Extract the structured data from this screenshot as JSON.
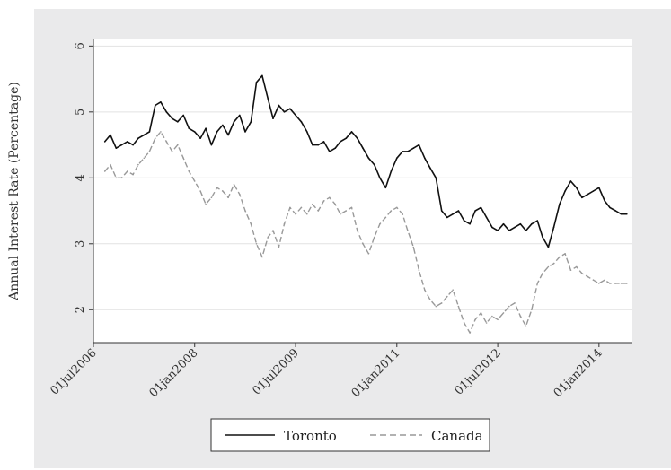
{
  "chart_data": {
    "type": "line",
    "title": "",
    "xlabel": "",
    "ylabel": "Annual Interest Rate (Percentage)",
    "xlim": [
      "2006-07-01",
      "2014-07-01"
    ],
    "ylim": [
      1.5,
      6.1
    ],
    "grid": true,
    "legend_position": "bottom",
    "x_ticks": [
      "01jul2006",
      "01jan2008",
      "01jul2009",
      "01jan2011",
      "01jul2012",
      "01jan2014"
    ],
    "y_ticks": [
      2,
      3,
      4,
      5,
      6
    ],
    "series": [
      {
        "name": "Toronto",
        "color": "#111111",
        "dash": "solid",
        "x": [
          "2006-09-01",
          "2006-10-01",
          "2006-11-01",
          "2006-12-01",
          "2007-01-01",
          "2007-02-01",
          "2007-03-01",
          "2007-04-01",
          "2007-05-01",
          "2007-06-01",
          "2007-07-01",
          "2007-08-01",
          "2007-09-01",
          "2007-10-01",
          "2007-11-01",
          "2007-12-01",
          "2008-01-01",
          "2008-02-01",
          "2008-03-01",
          "2008-04-01",
          "2008-05-01",
          "2008-06-01",
          "2008-07-01",
          "2008-08-01",
          "2008-09-01",
          "2008-10-01",
          "2008-11-01",
          "2008-12-01",
          "2009-01-01",
          "2009-02-01",
          "2009-03-01",
          "2009-04-01",
          "2009-05-01",
          "2009-06-01",
          "2009-07-01",
          "2009-08-01",
          "2009-09-01",
          "2009-10-01",
          "2009-11-01",
          "2009-12-01",
          "2010-01-01",
          "2010-02-01",
          "2010-03-01",
          "2010-04-01",
          "2010-05-01",
          "2010-06-01",
          "2010-07-01",
          "2010-08-01",
          "2010-09-01",
          "2010-10-01",
          "2010-11-01",
          "2010-12-01",
          "2011-01-01",
          "2011-02-01",
          "2011-03-01",
          "2011-04-01",
          "2011-05-01",
          "2011-06-01",
          "2011-07-01",
          "2011-08-01",
          "2011-09-01",
          "2011-10-01",
          "2011-11-01",
          "2011-12-01",
          "2012-01-01",
          "2012-02-01",
          "2012-03-01",
          "2012-04-01",
          "2012-05-01",
          "2012-06-01",
          "2012-07-01",
          "2012-08-01",
          "2012-09-01",
          "2012-10-01",
          "2012-11-01",
          "2012-12-01",
          "2013-01-01",
          "2013-02-01",
          "2013-03-01",
          "2013-04-01",
          "2013-05-01",
          "2013-06-01",
          "2013-07-01",
          "2013-08-01",
          "2013-09-01",
          "2013-10-01",
          "2013-11-01",
          "2013-12-01",
          "2014-01-01",
          "2014-02-01",
          "2014-03-01",
          "2014-04-01",
          "2014-05-01",
          "2014-06-01"
        ],
        "y": [
          4.55,
          4.65,
          4.45,
          4.5,
          4.55,
          4.5,
          4.6,
          4.65,
          4.7,
          5.1,
          5.15,
          5.0,
          4.9,
          4.85,
          4.95,
          4.75,
          4.7,
          4.6,
          4.75,
          4.5,
          4.7,
          4.8,
          4.65,
          4.85,
          4.95,
          4.7,
          4.85,
          5.45,
          5.55,
          5.2,
          4.9,
          5.1,
          5.0,
          5.05,
          4.95,
          4.85,
          4.7,
          4.5,
          4.5,
          4.55,
          4.4,
          4.45,
          4.55,
          4.6,
          4.7,
          4.6,
          4.45,
          4.3,
          4.2,
          4.0,
          3.85,
          4.1,
          4.3,
          4.4,
          4.4,
          4.45,
          4.5,
          4.3,
          4.15,
          4.0,
          3.5,
          3.4,
          3.45,
          3.5,
          3.35,
          3.3,
          3.5,
          3.55,
          3.4,
          3.25,
          3.2,
          3.3,
          3.2,
          3.25,
          3.3,
          3.2,
          3.3,
          3.35,
          3.1,
          2.95,
          3.25,
          3.6,
          3.8,
          3.95,
          3.85,
          3.7,
          3.75,
          3.8,
          3.85,
          3.65,
          3.55,
          3.5,
          3.45,
          3.45
        ]
      },
      {
        "name": "Canada",
        "color": "#999999",
        "dash": "dashed",
        "x": [
          "2006-09-01",
          "2006-10-01",
          "2006-11-01",
          "2006-12-01",
          "2007-01-01",
          "2007-02-01",
          "2007-03-01",
          "2007-04-01",
          "2007-05-01",
          "2007-06-01",
          "2007-07-01",
          "2007-08-01",
          "2007-09-01",
          "2007-10-01",
          "2007-11-01",
          "2007-12-01",
          "2008-01-01",
          "2008-02-01",
          "2008-03-01",
          "2008-04-01",
          "2008-05-01",
          "2008-06-01",
          "2008-07-01",
          "2008-08-01",
          "2008-09-01",
          "2008-10-01",
          "2008-11-01",
          "2008-12-01",
          "2009-01-01",
          "2009-02-01",
          "2009-03-01",
          "2009-04-01",
          "2009-05-01",
          "2009-06-01",
          "2009-07-01",
          "2009-08-01",
          "2009-09-01",
          "2009-10-01",
          "2009-11-01",
          "2009-12-01",
          "2010-01-01",
          "2010-02-01",
          "2010-03-01",
          "2010-04-01",
          "2010-05-01",
          "2010-06-01",
          "2010-07-01",
          "2010-08-01",
          "2010-09-01",
          "2010-10-01",
          "2010-11-01",
          "2010-12-01",
          "2011-01-01",
          "2011-02-01",
          "2011-03-01",
          "2011-04-01",
          "2011-05-01",
          "2011-06-01",
          "2011-07-01",
          "2011-08-01",
          "2011-09-01",
          "2011-10-01",
          "2011-11-01",
          "2011-12-01",
          "2012-01-01",
          "2012-02-01",
          "2012-03-01",
          "2012-04-01",
          "2012-05-01",
          "2012-06-01",
          "2012-07-01",
          "2012-08-01",
          "2012-09-01",
          "2012-10-01",
          "2012-11-01",
          "2012-12-01",
          "2013-01-01",
          "2013-02-01",
          "2013-03-01",
          "2013-04-01",
          "2013-05-01",
          "2013-06-01",
          "2013-07-01",
          "2013-08-01",
          "2013-09-01",
          "2013-10-01",
          "2013-11-01",
          "2013-12-01",
          "2014-01-01",
          "2014-02-01",
          "2014-03-01",
          "2014-04-01",
          "2014-05-01",
          "2014-06-01"
        ],
        "y": [
          4.1,
          4.2,
          4.0,
          4.0,
          4.1,
          4.05,
          4.2,
          4.3,
          4.4,
          4.6,
          4.7,
          4.55,
          4.4,
          4.5,
          4.3,
          4.1,
          3.95,
          3.8,
          3.6,
          3.7,
          3.85,
          3.8,
          3.7,
          3.9,
          3.75,
          3.5,
          3.3,
          3.0,
          2.8,
          3.1,
          3.2,
          2.95,
          3.3,
          3.55,
          3.45,
          3.55,
          3.45,
          3.6,
          3.5,
          3.65,
          3.7,
          3.6,
          3.45,
          3.5,
          3.55,
          3.2,
          3.0,
          2.85,
          3.1,
          3.3,
          3.4,
          3.5,
          3.55,
          3.45,
          3.2,
          2.95,
          2.6,
          2.3,
          2.15,
          2.05,
          2.1,
          2.2,
          2.3,
          2.05,
          1.8,
          1.65,
          1.85,
          1.95,
          1.8,
          1.9,
          1.85,
          1.95,
          2.05,
          2.1,
          1.9,
          1.75,
          2.0,
          2.4,
          2.55,
          2.65,
          2.7,
          2.8,
          2.85,
          2.6,
          2.65,
          2.55,
          2.5,
          2.45,
          2.4,
          2.45,
          2.4,
          2.4,
          2.4,
          2.4
        ]
      }
    ]
  }
}
